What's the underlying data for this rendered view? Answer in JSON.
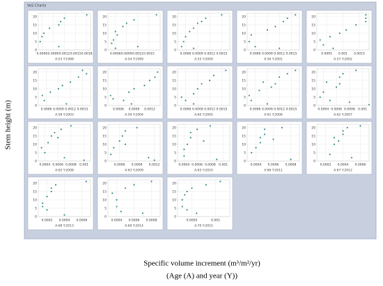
{
  "page": {
    "header": "VoS Charts",
    "y_label": "Stem height (m)",
    "x_label": "Specific volume increment (m³/m²/yr)",
    "x_sublabel": "(Age (A) and year (Y))"
  },
  "chart_data": [
    {
      "type": "scatter",
      "title": "A:53 Y:1998",
      "xlim": [
        0.0005,
        0.0019
      ],
      "xticks": [
        0.0006,
        0.0009,
        0.0012,
        0.0015,
        0.0018
      ],
      "ylim": [
        0,
        22
      ],
      "yticks": [
        0,
        5,
        10,
        15,
        20
      ],
      "color": "#3f8c8c",
      "x": [
        0.00055,
        0.0006,
        0.00065,
        0.0008,
        0.00105,
        0.0011,
        0.0012,
        0.0018,
        0.00105
      ],
      "y": [
        5,
        8,
        10,
        13,
        15,
        17,
        19,
        21,
        2
      ]
    },
    {
      "type": "scatter",
      "title": "A:54 Y:1999",
      "xlim": [
        0.0004,
        0.0018
      ],
      "xticks": [
        0.0006,
        0.0009,
        0.0012,
        0.0015
      ],
      "ylim": [
        0,
        22
      ],
      "yticks": [
        0,
        5,
        10,
        15,
        20
      ],
      "color": "#3f8c8c",
      "x": [
        0.0005,
        0.00055,
        0.0006,
        0.00065,
        0.0008,
        0.0009,
        0.0011,
        0.0012,
        0.0017,
        0.0006
      ],
      "y": [
        4,
        6,
        11,
        9,
        14,
        16,
        18,
        2,
        21,
        1
      ]
    },
    {
      "type": "scatter",
      "title": "A:55 Y:2000",
      "xlim": [
        0.0004,
        0.0017
      ],
      "xticks": [
        0.0006,
        0.0009,
        0.0012,
        0.0015
      ],
      "ylim": [
        0,
        22
      ],
      "yticks": [
        0,
        5,
        10,
        15,
        20
      ],
      "color": "#3f8c8c",
      "x": [
        0.0005,
        0.00055,
        0.0006,
        0.0007,
        0.0008,
        0.0009,
        0.001,
        0.0011,
        0.0015,
        0.0008
      ],
      "y": [
        2,
        5,
        8,
        11,
        13,
        16,
        17,
        19,
        21,
        1
      ]
    },
    {
      "type": "scatter",
      "title": "A:56 Y:2001",
      "xlim": [
        0.0004,
        0.0017
      ],
      "xticks": [
        0.0006,
        0.0009,
        0.0012,
        0.0015
      ],
      "ylim": [
        0,
        22
      ],
      "yticks": [
        0,
        5,
        10,
        15,
        20
      ],
      "color": "#3f8c8c",
      "x": [
        0.00045,
        0.0005,
        0.0006,
        0.0009,
        0.0011,
        0.0013,
        0.0014,
        0.0016,
        0.0012
      ],
      "y": [
        5,
        9,
        2,
        12,
        14,
        17,
        19,
        21,
        1
      ]
    },
    {
      "type": "scatter",
      "title": "A:57 Y:2002",
      "xlim": [
        0.0002,
        0.0018
      ],
      "xticks": [
        0.0005,
        0.001,
        0.0015
      ],
      "ylim": [
        0,
        22
      ],
      "yticks": [
        0,
        5,
        10,
        15,
        20
      ],
      "color": "#3f8c8c",
      "x": [
        0.0003,
        0.0004,
        0.0006,
        0.0007,
        0.0009,
        0.0011,
        0.0014,
        0.0017,
        0.0017,
        0.0017
      ],
      "y": [
        6,
        3,
        8,
        1,
        10,
        12,
        15,
        17,
        19,
        21
      ]
    },
    {
      "type": "scatter",
      "title": "A:58 Y:2003",
      "xlim": [
        0.0004,
        0.0017
      ],
      "xticks": [
        0.0006,
        0.0009,
        0.0012,
        0.0015
      ],
      "ylim": [
        0,
        22
      ],
      "yticks": [
        0,
        5,
        10,
        15,
        20
      ],
      "color": "#3f8c8c",
      "x": [
        0.0005,
        0.00055,
        0.0007,
        0.0009,
        0.001,
        0.0012,
        0.0014,
        0.0015,
        0.0016,
        0.0011
      ],
      "y": [
        6,
        3,
        8,
        10,
        12,
        14,
        17,
        21,
        19,
        1
      ]
    },
    {
      "type": "scatter",
      "title": "A:59 Y:2004",
      "xlim": [
        0.0004,
        0.0014
      ],
      "xticks": [
        0.0006,
        0.0009,
        0.0012
      ],
      "ylim": [
        0,
        22
      ],
      "yticks": [
        0,
        5,
        10,
        15,
        20
      ],
      "color": "#3f8c8c",
      "x": [
        0.00045,
        0.0005,
        0.0007,
        0.0008,
        0.0009,
        0.0011,
        0.0012,
        0.0013,
        0.00135,
        0.00085
      ],
      "y": [
        6,
        4,
        3,
        8,
        10,
        12,
        15,
        17,
        20,
        1
      ]
    },
    {
      "type": "scatter",
      "title": "A:60 Y:2005",
      "xlim": [
        0.0004,
        0.0017
      ],
      "xticks": [
        0.0006,
        0.0009,
        0.0012,
        0.0015
      ],
      "ylim": [
        0,
        22
      ],
      "yticks": [
        0,
        5,
        10,
        15,
        20
      ],
      "color": "#3f8c8c",
      "x": [
        0.0005,
        0.0006,
        0.0008,
        0.0009,
        0.001,
        0.0012,
        0.0013,
        0.0016,
        0.0008
      ],
      "y": [
        5,
        3,
        7,
        10,
        13,
        15,
        18,
        21,
        1
      ]
    },
    {
      "type": "scatter",
      "title": "A:61 Y:2006",
      "xlim": [
        0.0004,
        0.0017
      ],
      "xticks": [
        0.0006,
        0.0009,
        0.0012,
        0.0015
      ],
      "ylim": [
        0,
        22
      ],
      "yticks": [
        0,
        5,
        10,
        15,
        20
      ],
      "color": "#3f8c8c",
      "x": [
        0.00045,
        0.0005,
        0.0007,
        0.0008,
        0.001,
        0.0011,
        0.0012,
        0.0014,
        0.0016,
        0.0009
      ],
      "y": [
        6,
        3,
        9,
        14,
        11,
        13,
        17,
        19,
        21,
        1
      ]
    },
    {
      "type": "scatter",
      "title": "A:62 Y:2007",
      "xlim": [
        0.0003,
        0.0011
      ],
      "xticks": [
        0.0004,
        0.0006,
        0.0008,
        0.001
      ],
      "ylim": [
        0,
        22
      ],
      "yticks": [
        0,
        5,
        10,
        15,
        20
      ],
      "color": "#3f8c8c",
      "x": [
        0.00035,
        0.0004,
        0.00045,
        0.0005,
        0.0006,
        0.00065,
        0.00065,
        0.0007,
        0.0009,
        0.0008,
        0.0011
      ],
      "y": [
        5,
        8,
        14,
        3,
        11,
        13,
        17,
        19,
        21,
        2,
        0.5
      ]
    },
    {
      "type": "scatter",
      "title": "A:62 Y:2008",
      "xlim": [
        0.0003,
        0.0011
      ],
      "xticks": [
        0.0004,
        0.0006,
        0.0008,
        0.001
      ],
      "ylim": [
        0,
        22
      ],
      "yticks": [
        0,
        5,
        10,
        15,
        20
      ],
      "color": "#3f8c8c",
      "x": [
        0.00035,
        0.0004,
        0.00045,
        0.0005,
        0.00055,
        0.0006,
        0.00065,
        0.0008,
        0.0007,
        0.001
      ],
      "y": [
        8,
        5,
        11,
        15,
        17,
        14,
        19,
        21,
        2,
        0.5
      ]
    },
    {
      "type": "scatter",
      "title": "A:63 Y:2009",
      "xlim": [
        0.0004,
        0.0013
      ],
      "xticks": [
        0.0006,
        0.0009,
        0.0012
      ],
      "ylim": [
        0,
        22
      ],
      "yticks": [
        0,
        5,
        10,
        15,
        20
      ],
      "color": "#3f8c8c",
      "x": [
        0.00045,
        0.0005,
        0.0006,
        0.00065,
        0.0007,
        0.0007,
        0.0009,
        0.0011,
        0.0012
      ],
      "y": [
        4,
        8,
        12,
        15,
        18,
        10,
        20,
        2,
        0.5
      ]
    },
    {
      "type": "scatter",
      "title": "A:63 Y:2010",
      "xlim": [
        0.0003,
        0.0011
      ],
      "xticks": [
        0.0004,
        0.0006,
        0.0008,
        0.001
      ],
      "ylim": [
        0,
        22
      ],
      "yticks": [
        0,
        5,
        10,
        15,
        20
      ],
      "color": "#3f8c8c",
      "x": [
        0.0004,
        0.0004,
        0.00045,
        0.0005,
        0.0005,
        0.0006,
        0.0007,
        0.0008,
        0.0009
      ],
      "y": [
        3,
        7,
        10,
        14,
        17,
        19,
        12,
        21,
        1
      ]
    },
    {
      "type": "scatter",
      "title": "A:66 Y:2011",
      "xlim": [
        0.0003,
        0.0009
      ],
      "xticks": [
        0.0004,
        0.0006,
        0.0008
      ],
      "ylim": [
        0,
        22
      ],
      "yticks": [
        0,
        5,
        10,
        15,
        20
      ],
      "color": "#3f8c8c",
      "x": [
        0.00035,
        0.0004,
        0.00045,
        0.00045,
        0.0005,
        0.0005,
        0.0006,
        0.0007,
        0.0008
      ],
      "y": [
        5,
        8,
        11,
        14,
        16,
        19,
        13,
        20,
        1
      ]
    },
    {
      "type": "scatter",
      "title": "A:67 Y:2012",
      "xlim": [
        0.0001,
        0.0007
      ],
      "xticks": [
        0.0002,
        0.0004,
        0.0006
      ],
      "ylim": [
        0,
        22
      ],
      "yticks": [
        0,
        5,
        10,
        15,
        20
      ],
      "color": "#3f8c8c",
      "x": [
        0.00025,
        0.0003,
        0.0003,
        0.00035,
        0.0004,
        0.0004,
        0.00045,
        0.0005,
        0.0006
      ],
      "y": [
        4,
        10,
        14,
        12,
        16,
        18,
        20,
        2,
        21
      ]
    },
    {
      "type": "scatter",
      "title": "A:68 Y:2013",
      "xlim": [
        0.0001,
        0.0007
      ],
      "xticks": [
        0.0002,
        0.0004,
        0.0006
      ],
      "ylim": [
        0,
        22
      ],
      "yticks": [
        0,
        5,
        10,
        15,
        20
      ],
      "color": "#3f8c8c",
      "x": [
        0.00015,
        0.00015,
        0.0002,
        0.0002,
        0.00025,
        0.00025,
        0.0003,
        0.0004,
        0.00065
      ],
      "y": [
        6,
        8,
        4,
        12,
        15,
        17,
        19,
        1,
        21
      ]
    },
    {
      "type": "scatter",
      "title": "A:69 Y:2014",
      "xlim": [
        0.0003,
        0.0009
      ],
      "xticks": [
        0.0004,
        0.0006,
        0.0008
      ],
      "ylim": [
        0,
        22
      ],
      "yticks": [
        0,
        5,
        10,
        15,
        20
      ],
      "color": "#3f8c8c",
      "x": [
        0.00035,
        0.0004,
        0.0004,
        0.00045,
        0.0005,
        0.0006,
        0.0007,
        0.0008
      ],
      "y": [
        14,
        10,
        6,
        3,
        17,
        19,
        2,
        21
      ]
    },
    {
      "type": "scatter",
      "title": "A:70 Y:2015",
      "xlim": [
        0.0002,
        0.0013
      ],
      "xticks": [
        0.0005,
        0.001
      ],
      "ylim": [
        0,
        22
      ],
      "yticks": [
        0,
        5,
        10,
        15,
        20
      ],
      "color": "#3f8c8c",
      "x": [
        0.0003,
        0.0003,
        0.00035,
        0.0004,
        0.0004,
        0.0005,
        0.0006,
        0.0008,
        0.0011
      ],
      "y": [
        6,
        10,
        13,
        4,
        15,
        17,
        2,
        19,
        21
      ]
    }
  ]
}
